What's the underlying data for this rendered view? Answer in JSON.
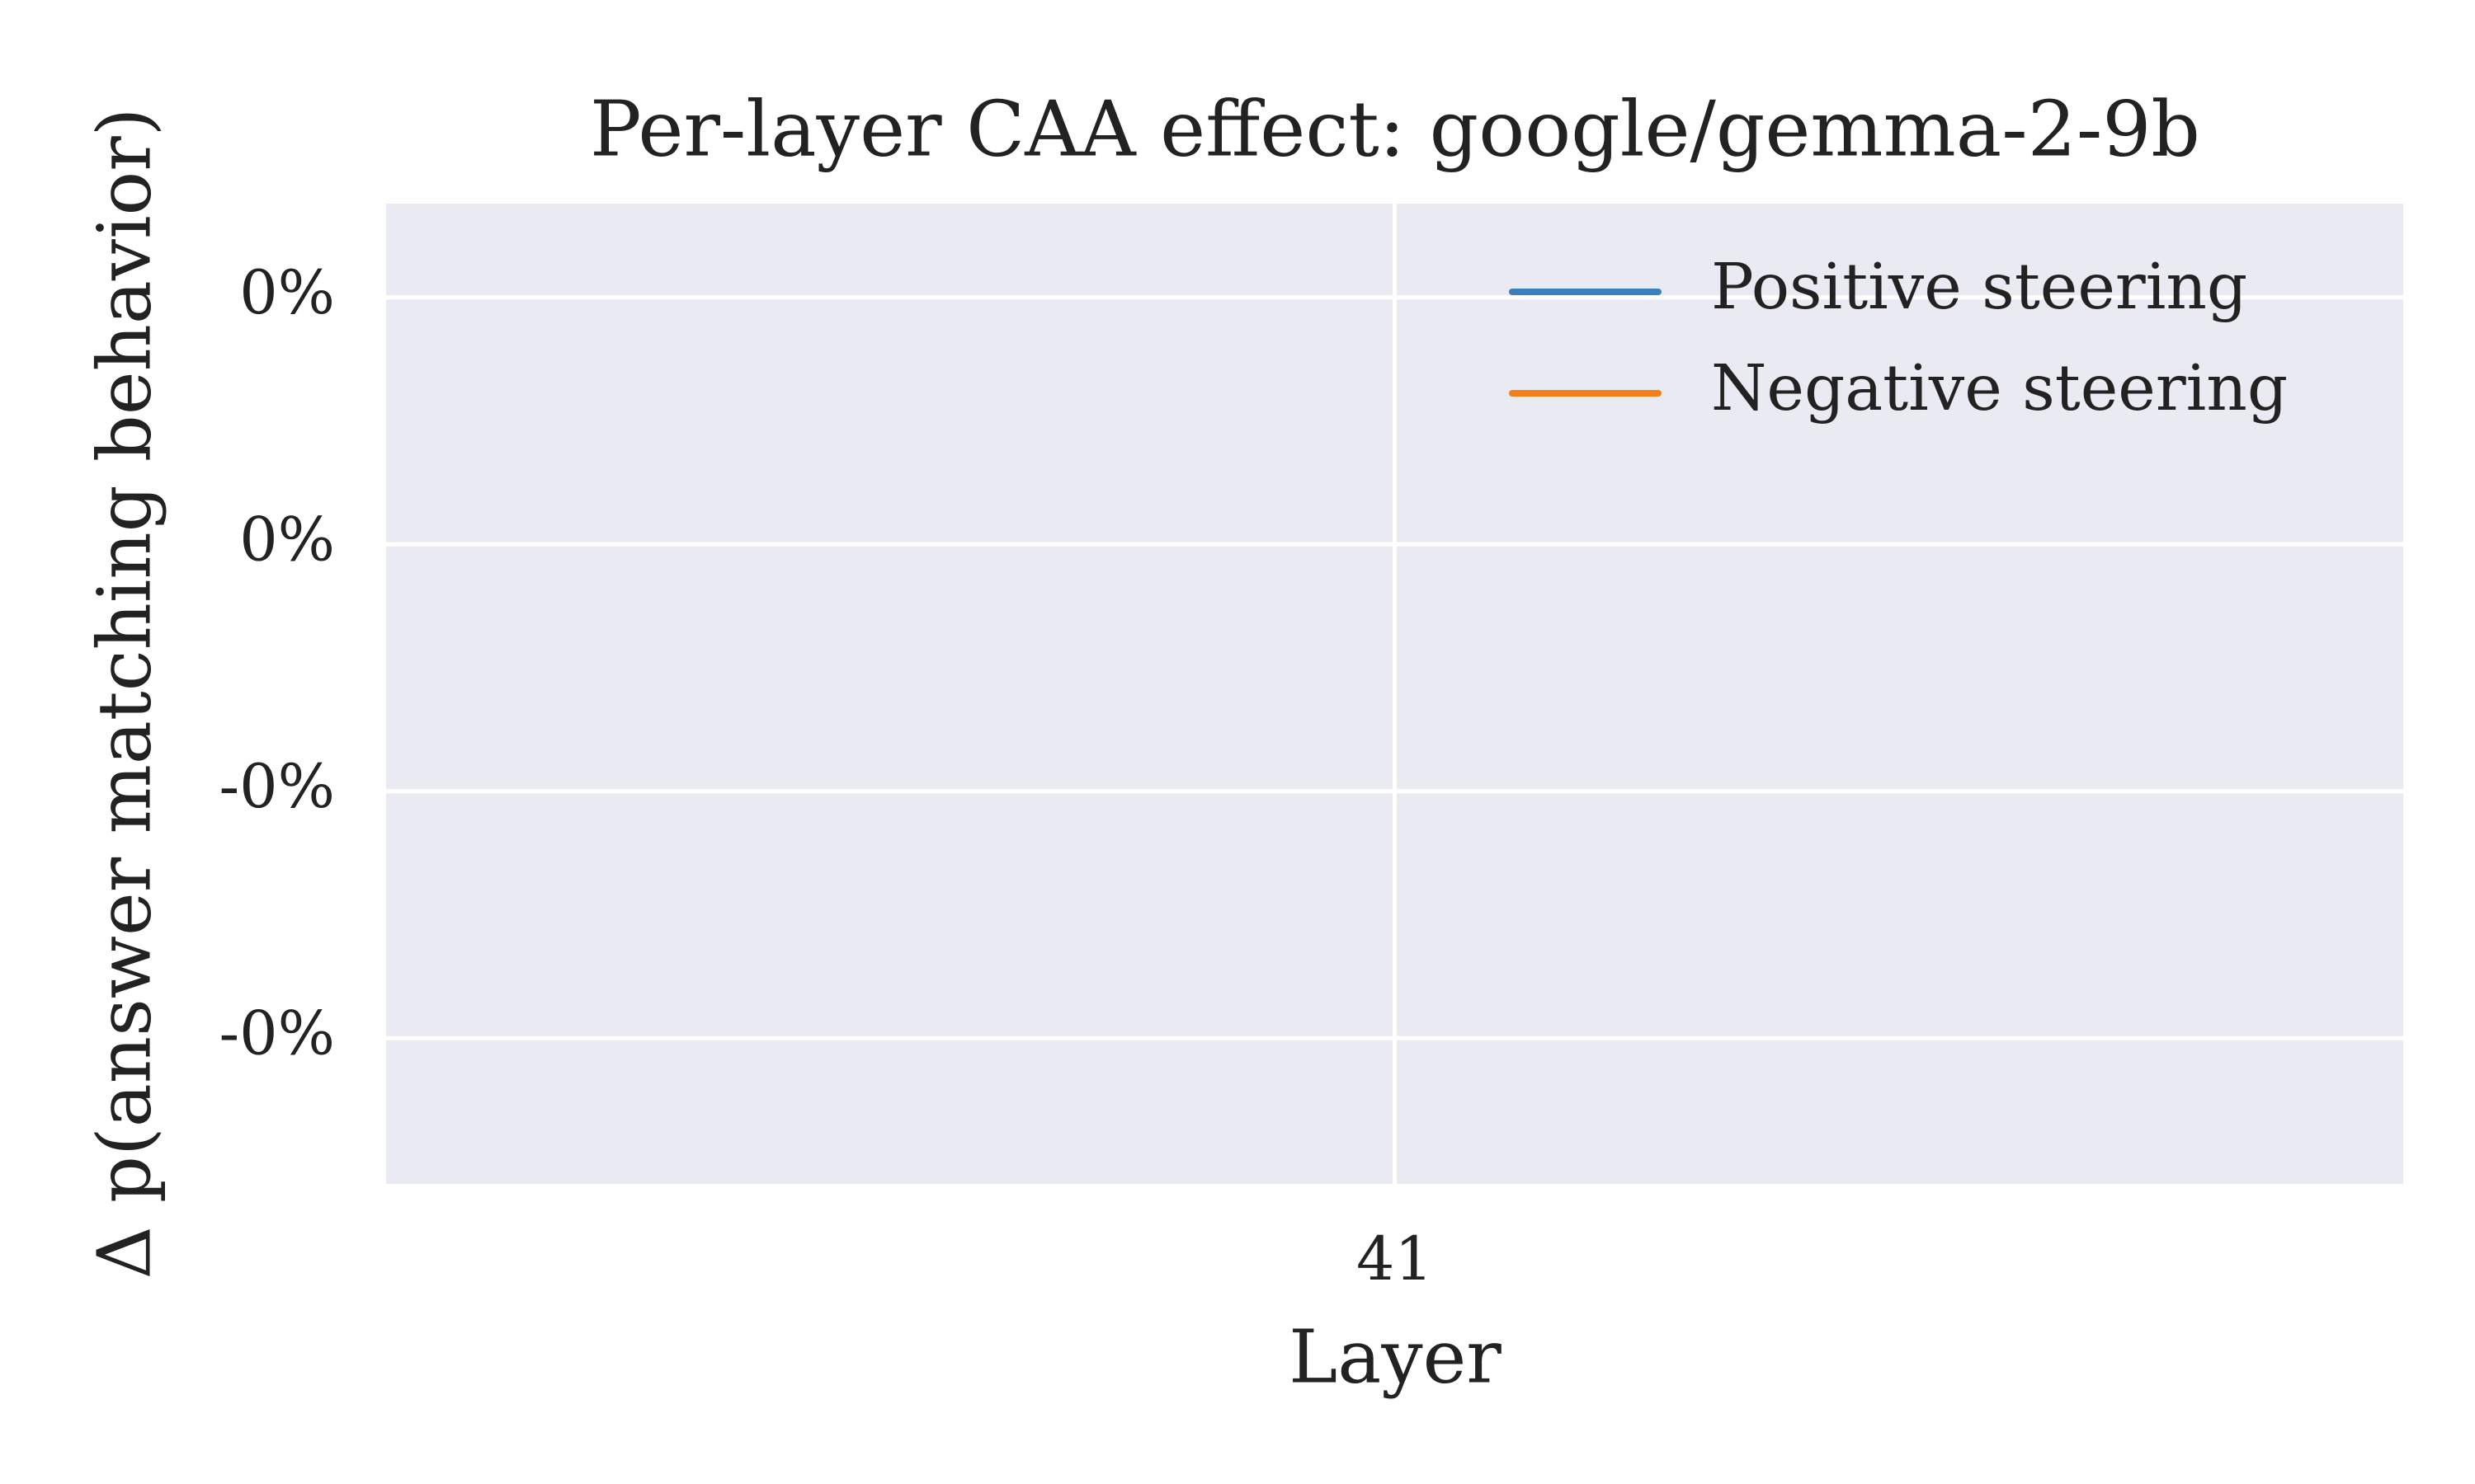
{
  "chart_data": {
    "type": "line",
    "title": "Per-layer CAA effect: google/gemma-2-9b",
    "xlabel": "Layer",
    "ylabel": "Δ p(answer matching behavior)",
    "x": [
      41
    ],
    "xlim": [
      40.9,
      41.1
    ],
    "xticks": [
      41
    ],
    "ylim": [
      -0.209,
      0.188
    ],
    "yticks": [
      {
        "value": 0.15,
        "label": "0%"
      },
      {
        "value": 0.05,
        "label": "0%"
      },
      {
        "value": -0.05,
        "label": "-0%"
      },
      {
        "value": -0.15,
        "label": "-0%"
      }
    ],
    "grid": true,
    "legend": "upper right",
    "series": [
      {
        "name": "Positive steering",
        "color": "#3a7fbf",
        "values": [
          null
        ]
      },
      {
        "name": "Negative steering",
        "color": "#f47f17",
        "values": [
          null
        ]
      }
    ]
  }
}
